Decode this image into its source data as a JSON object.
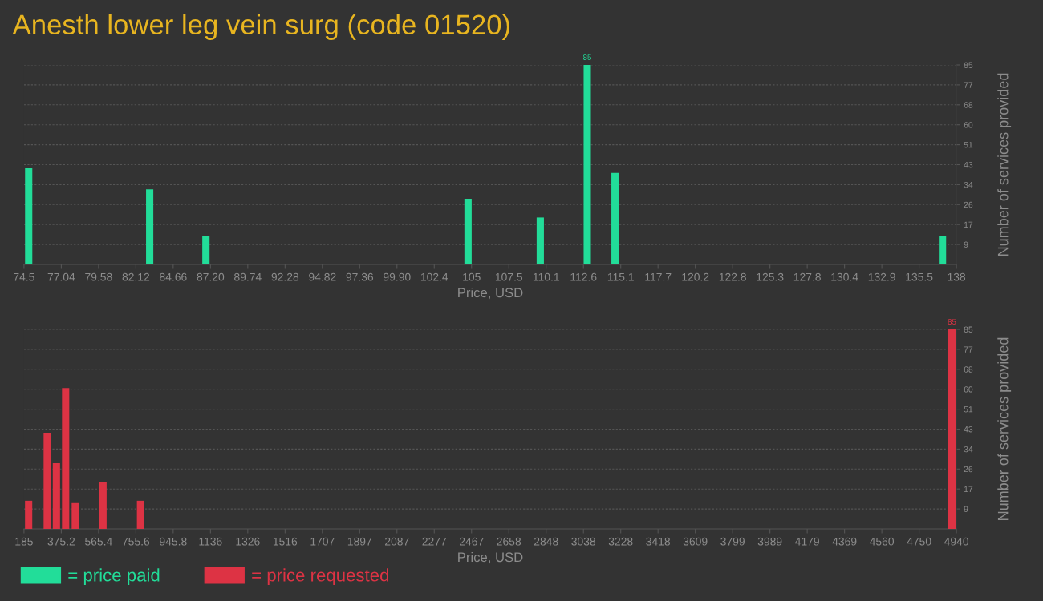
{
  "chart_data": [
    {
      "type": "bar",
      "title": "Anesth lower leg vein surg (code 01520)",
      "xlabel": "Price, USD",
      "ylabel": "Number of services provided",
      "x": [
        74.82,
        83.06,
        86.89,
        104.74,
        109.66,
        112.86,
        114.75,
        137.05
      ],
      "series": [
        {
          "name": "= price paid",
          "color": "#22dd99",
          "values": [
            41,
            32,
            12,
            28,
            20,
            85,
            39,
            12
          ],
          "value_labels": [
            null,
            null,
            null,
            null,
            null,
            "85",
            null,
            null
          ]
        }
      ],
      "xlim": [
        74.5,
        138
      ],
      "xticks": [
        74.5,
        {
          "value": 77.04,
          "label": "77.04"
        },
        {
          "value": 79.58,
          "label": "79.58"
        },
        {
          "value": 82.12,
          "label": "82.12"
        },
        {
          "value": 84.66,
          "label": "84.66"
        },
        {
          "value": 87.2,
          "label": "87.20"
        },
        {
          "value": 89.74,
          "label": "89.74"
        },
        {
          "value": 92.28,
          "label": "92.28"
        },
        {
          "value": 94.82,
          "label": "94.82"
        },
        {
          "value": 97.36,
          "label": "97.36"
        },
        {
          "value": 99.9,
          "label": "99.90"
        },
        {
          "value": 102.44,
          "label": "102.4"
        },
        {
          "value": 104.98,
          "label": "105"
        },
        {
          "value": 107.52,
          "label": "107.5"
        },
        {
          "value": 110.06,
          "label": "110.1"
        },
        {
          "value": 112.6,
          "label": "112.6"
        },
        {
          "value": 115.14,
          "label": "115.1"
        },
        {
          "value": 117.68,
          "label": "117.7"
        },
        {
          "value": 120.22,
          "label": "120.2"
        },
        {
          "value": 122.76,
          "label": "122.8"
        },
        {
          "value": 125.3,
          "label": "125.3"
        },
        {
          "value": 127.84,
          "label": "127.8"
        },
        {
          "value": 130.38,
          "label": "130.4"
        },
        {
          "value": 132.92,
          "label": "132.9"
        },
        {
          "value": 135.46,
          "label": "135.5"
        },
        138
      ],
      "ylim": [
        0,
        85
      ],
      "yticks": [
        {
          "value": 8.5,
          "label": "9"
        },
        17,
        {
          "value": 25.5,
          "label": "26"
        },
        34,
        {
          "value": 42.5,
          "label": "43"
        },
        51,
        {
          "value": 59.5,
          "label": "60"
        },
        68,
        {
          "value": 76.5,
          "label": "77"
        },
        85
      ],
      "grid": "y",
      "legend": "bottom left"
    },
    {
      "type": "bar",
      "xlabel": "Price, USD",
      "ylabel": "Number of services provided",
      "x": [
        208.7,
        303.5,
        350.4,
        397.4,
        446.7,
        587.9,
        779.4,
        4917
      ],
      "series": [
        {
          "name": "= price requested",
          "color": "#dd3344",
          "values": [
            12,
            41,
            28,
            60,
            11,
            20,
            12,
            85
          ],
          "value_labels": [
            null,
            null,
            null,
            null,
            null,
            null,
            null,
            "85"
          ]
        }
      ],
      "xlim": [
        185,
        4940
      ],
      "xticks": [
        185,
        {
          "value": 375.2,
          "label": "375.2"
        },
        {
          "value": 565.4,
          "label": "565.4"
        },
        {
          "value": 755.6,
          "label": "755.6"
        },
        {
          "value": 945.8,
          "label": "945.8"
        },
        {
          "value": 1136,
          "label": "1136"
        },
        {
          "value": 1326.2,
          "label": "1326"
        },
        {
          "value": 1516.4,
          "label": "1516"
        },
        {
          "value": 1706.6,
          "label": "1707"
        },
        {
          "value": 1896.8,
          "label": "1897"
        },
        {
          "value": 2087,
          "label": "2087"
        },
        {
          "value": 2277.2,
          "label": "2277"
        },
        {
          "value": 2467.4,
          "label": "2467"
        },
        {
          "value": 2657.6,
          "label": "2658"
        },
        {
          "value": 2847.8,
          "label": "2848"
        },
        {
          "value": 3038,
          "label": "3038"
        },
        {
          "value": 3228.2,
          "label": "3228"
        },
        {
          "value": 3418.4,
          "label": "3418"
        },
        {
          "value": 3608.6,
          "label": "3609"
        },
        {
          "value": 3798.8,
          "label": "3799"
        },
        {
          "value": 3989,
          "label": "3989"
        },
        {
          "value": 4179.2,
          "label": "4179"
        },
        {
          "value": 4369.4,
          "label": "4369"
        },
        {
          "value": 4559.6,
          "label": "4560"
        },
        {
          "value": 4749.8,
          "label": "4750"
        },
        4940
      ],
      "ylim": [
        0,
        85
      ],
      "yticks": [
        {
          "value": 8.5,
          "label": "9"
        },
        17,
        {
          "value": 25.5,
          "label": "26"
        },
        34,
        {
          "value": 42.5,
          "label": "43"
        },
        51,
        {
          "value": 59.5,
          "label": "60"
        },
        68,
        {
          "value": 76.5,
          "label": "77"
        },
        85
      ],
      "grid": "y",
      "legend": "bottom left"
    }
  ]
}
